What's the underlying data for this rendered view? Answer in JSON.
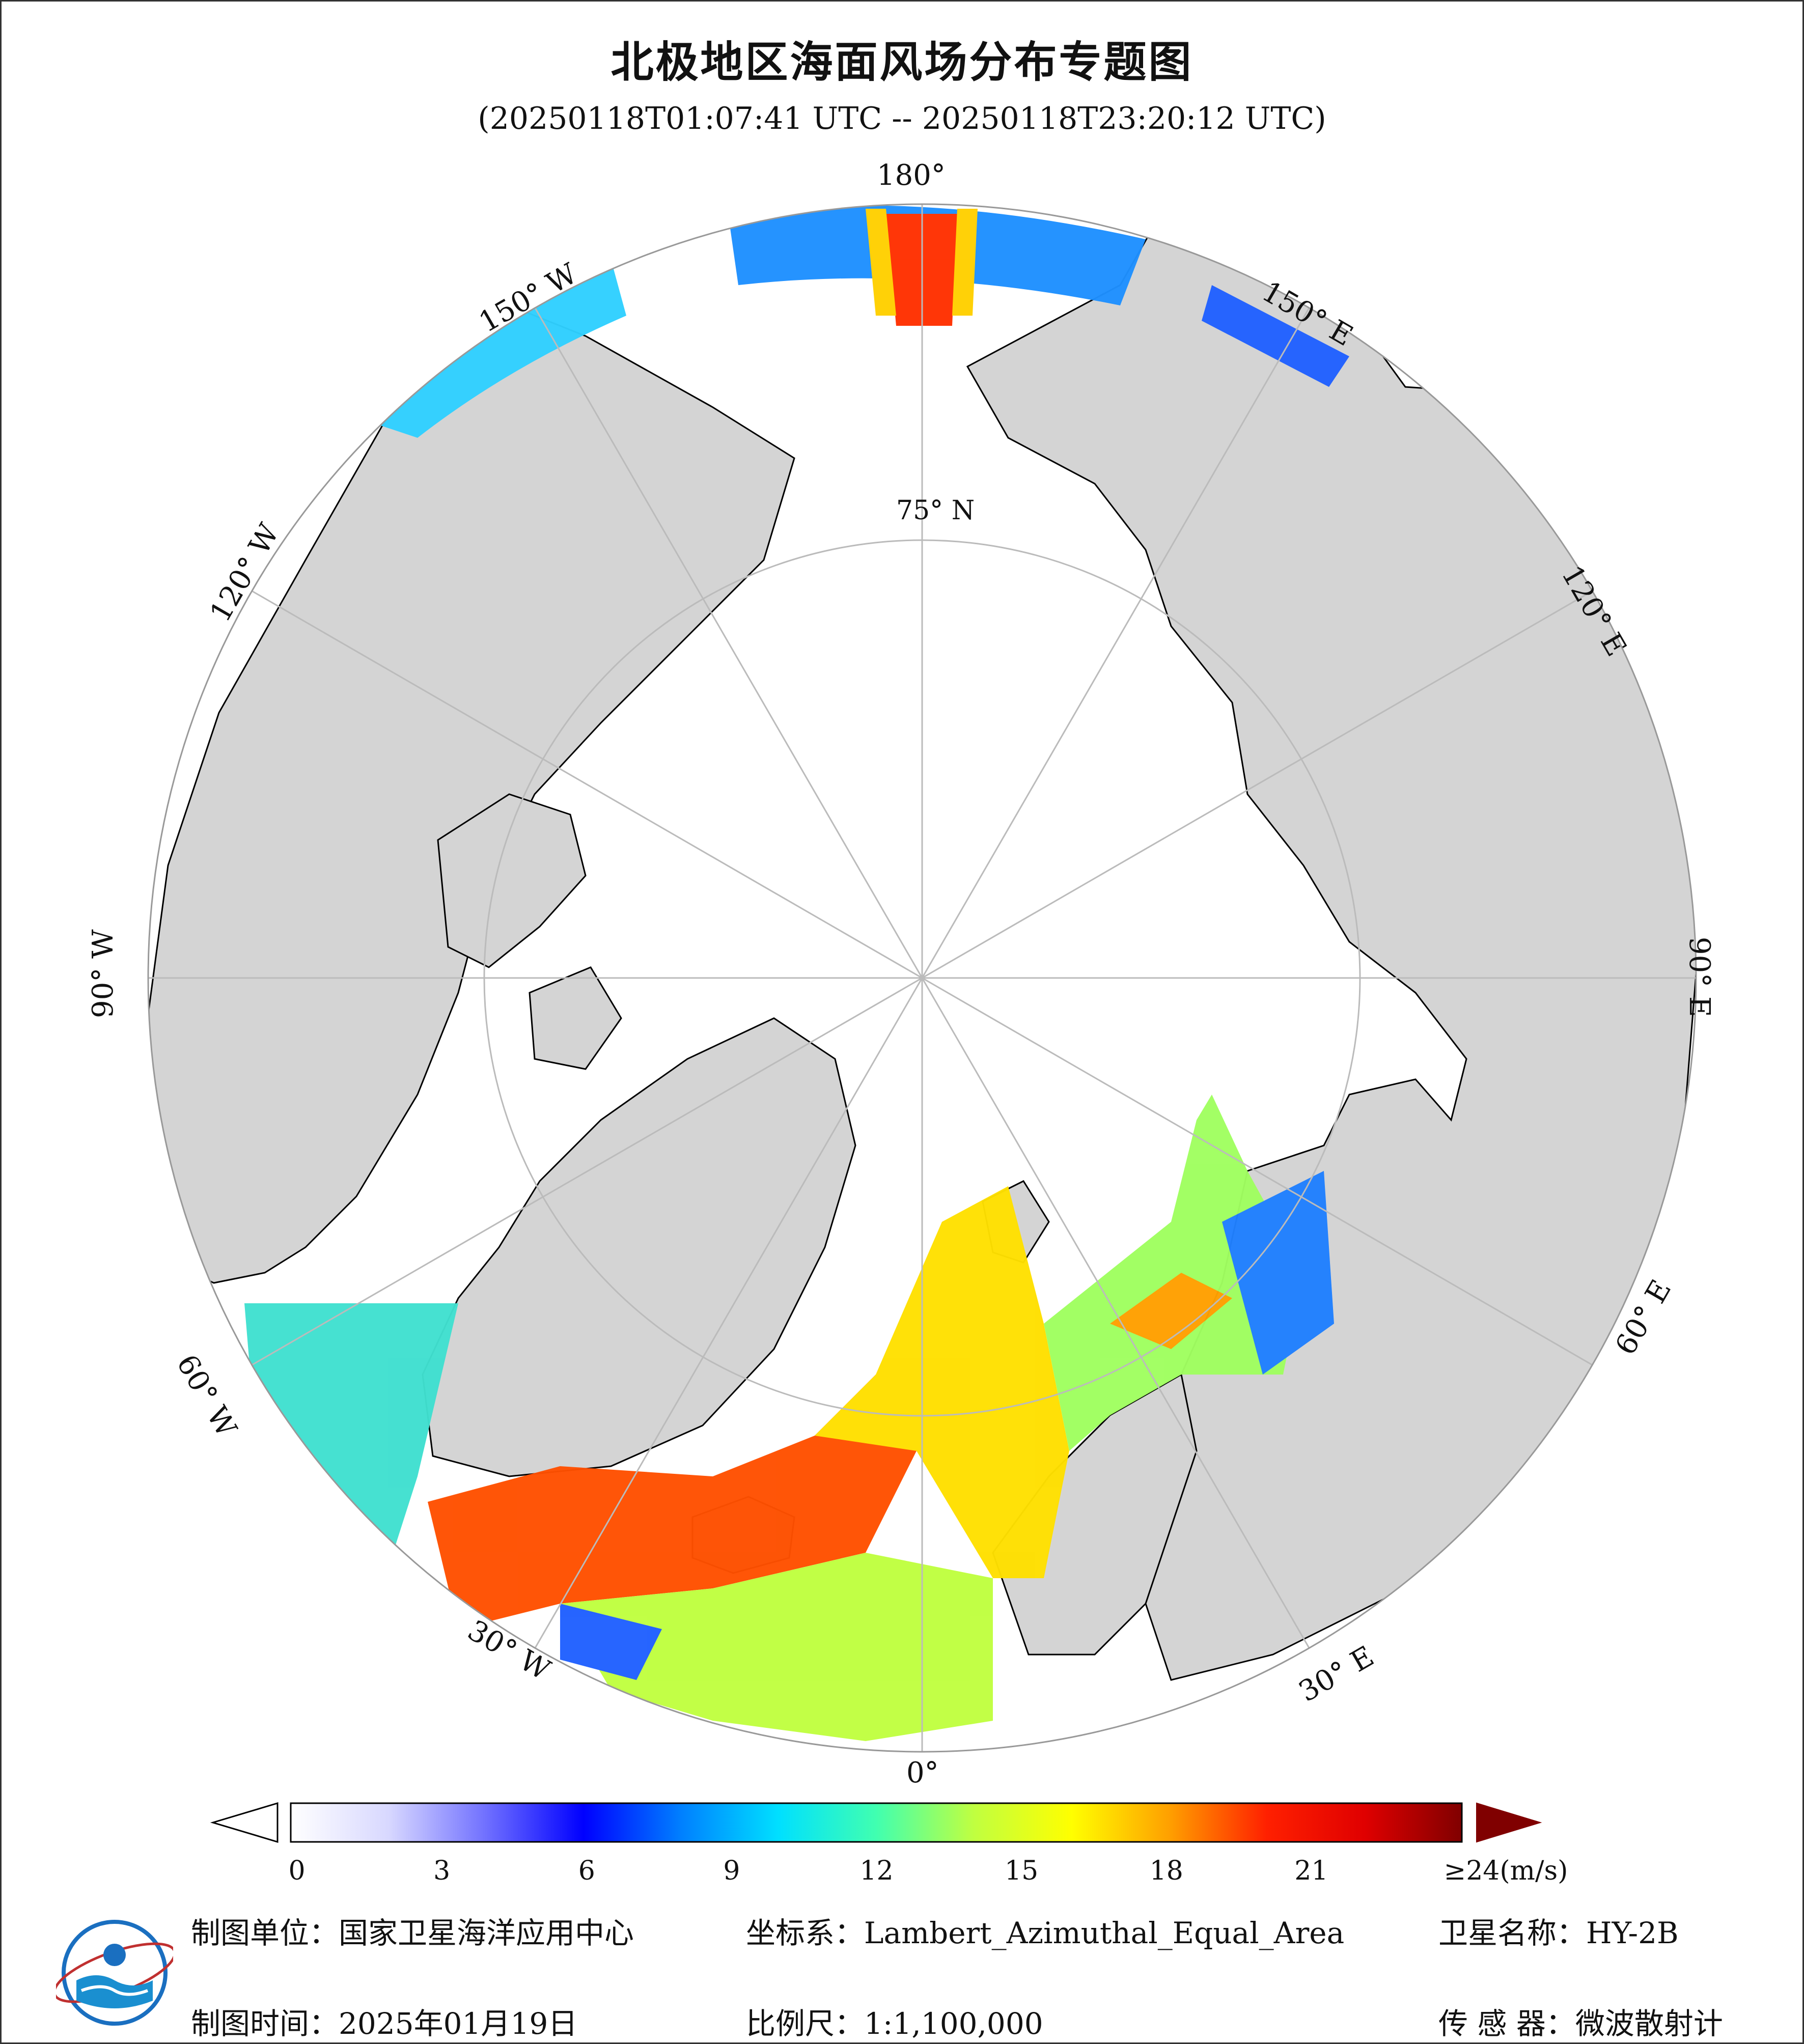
{
  "title": "北极地区海面风场分布专题图",
  "subtitle": "(20250118T01:07:41 UTC -- 20250118T23:20:12 UTC)",
  "map": {
    "projection": "Lambert_Azimuthal_Equal_Area",
    "center": "North Pole",
    "latitude_circle_label": "75° N",
    "longitude_labels": [
      "180°",
      "150° E",
      "120° E",
      "90° E",
      "60° E",
      "30° E",
      "0°",
      "30° W",
      "60° W",
      "90° W",
      "120° W",
      "150° W"
    ],
    "colors": {
      "land": "#d4d4d4",
      "ice_ocean": "#ffffff",
      "grid": "#c8c8c8",
      "coast": "#000000"
    }
  },
  "colorbar": {
    "unit": "(m/s)",
    "min": 0,
    "max": 24,
    "ticks": [
      "0",
      "3",
      "6",
      "9",
      "12",
      "15",
      "18",
      "21",
      "≥24(m/s)"
    ],
    "tick_values": [
      0,
      3,
      6,
      9,
      12,
      15,
      18,
      21,
      24
    ],
    "stops": [
      "#ffffff",
      "#d8d8ff",
      "#7070ff",
      "#0000ff",
      "#0080ff",
      "#00e0ff",
      "#40ffb0",
      "#c0ff40",
      "#ffff00",
      "#ffa000",
      "#ff2000",
      "#e00000",
      "#800000"
    ]
  },
  "footer": {
    "maker_label": "制图单位：",
    "maker_value": "国家卫星海洋应用中心",
    "crs_label": "坐标系：",
    "crs_value": "Lambert_Azimuthal_Equal_Area",
    "satellite_label": "卫星名称：",
    "satellite_value": "HY-2B",
    "date_label": "制图时间：",
    "date_value": "2025年01月19日",
    "scale_label": "比例尺：",
    "scale_value": "1:1,100,000",
    "sensor_label": "传 感 器：",
    "sensor_value": "微波散射计"
  },
  "logo": {
    "icon": "nsoas-logo-icon"
  }
}
